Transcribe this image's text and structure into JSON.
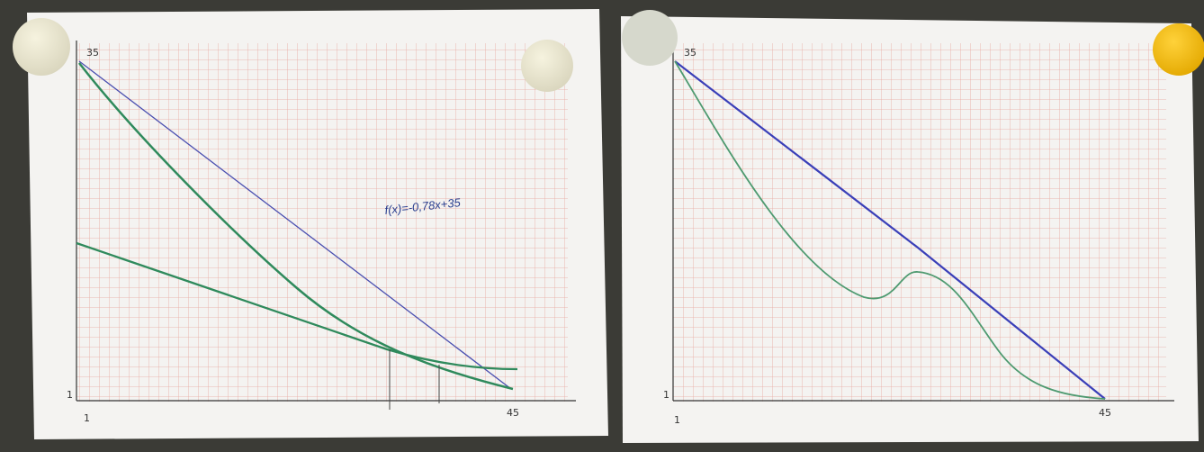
{
  "panels": [
    {
      "y_top_label": "35",
      "y_bottom_label": "1",
      "x_left_label": "1",
      "x_right_label": "45",
      "annotation": "f(x)=-0,78x+35"
    },
    {
      "y_top_label": "35",
      "y_bottom_label": "1",
      "x_left_label": "1",
      "x_right_label": "45"
    }
  ]
}
